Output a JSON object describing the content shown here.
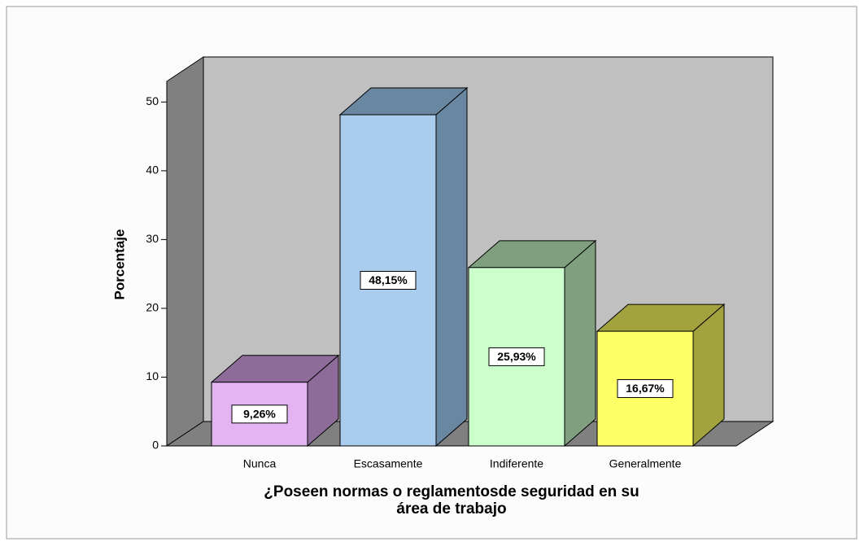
{
  "chart_data": {
    "type": "bar3d",
    "ylabel": "Porcentaje",
    "xlabel": [
      "¿Poseen normas o reglamentosde seguridad en su",
      "área de trabajo"
    ],
    "categories": [
      "Nunca",
      "Escasamente",
      "Indiferente",
      "Generalmente"
    ],
    "values": [
      9.26,
      48.15,
      25.93,
      16.67
    ],
    "value_labels": [
      "9,26%",
      "48,15%",
      "25,93%",
      "16,67%"
    ],
    "colors": [
      "#e4b4f2",
      "#aacdee",
      "#ccffcc",
      "#ffff66"
    ],
    "side_colors": [
      "#8e6c9a",
      "#6a87a2",
      "#7f9f7f",
      "#a2a23f"
    ],
    "ylim": [
      0,
      53
    ],
    "yticks": [
      0,
      10,
      20,
      30,
      40,
      50
    ]
  }
}
